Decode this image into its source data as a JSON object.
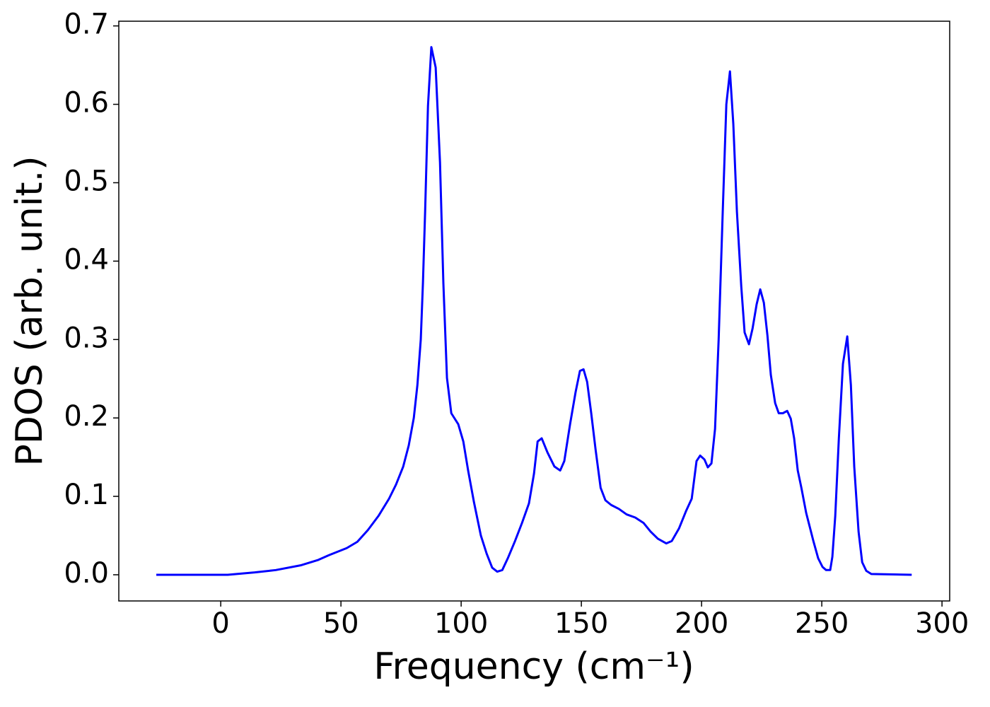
{
  "chart_data": {
    "type": "line",
    "x_label": "Frequency (cm⁻¹)",
    "y_label": "PDOS (arb. unit.)",
    "color": "#0000ff",
    "xlim": [
      -42.4,
      303.2
    ],
    "ylim": [
      -0.0334,
      0.706
    ],
    "xticks": [
      0,
      50,
      100,
      150,
      200,
      250,
      300
    ],
    "yticks": [
      {
        "value": 0,
        "label": "0.0"
      },
      0.1,
      0.2,
      0.3,
      0.4,
      0.5,
      0.6,
      0.7
    ],
    "x": [
      -26.8,
      2.9,
      14.1,
      22.9,
      33.2,
      40.6,
      45.0,
      52.4,
      56.8,
      61.2,
      65.6,
      70.0,
      72.9,
      75.9,
      78.2,
      80.3,
      81.8,
      83.2,
      84.1,
      85.0,
      86.2,
      87.6,
      89.4,
      91.2,
      92.6,
      94.1,
      95.9,
      98.8,
      100.9,
      102.9,
      105.3,
      108.2,
      110.6,
      112.9,
      115.0,
      117.1,
      119.4,
      122.4,
      125.3,
      128.2,
      130.3,
      131.8,
      133.5,
      135.9,
      138.8,
      141.2,
      142.9,
      145.3,
      147.6,
      149.4,
      150.9,
      152.4,
      154.1,
      155.9,
      158.0,
      160.0,
      162.4,
      165.6,
      168.8,
      172.4,
      175.9,
      178.8,
      181.8,
      185.3,
      187.6,
      190.6,
      193.5,
      195.9,
      197.9,
      199.4,
      201.2,
      202.6,
      204.1,
      205.6,
      207.1,
      208.8,
      210.3,
      211.8,
      213.2,
      214.7,
      216.5,
      217.9,
      219.7,
      221.2,
      222.9,
      224.4,
      225.9,
      227.4,
      228.8,
      230.6,
      232.1,
      233.8,
      235.6,
      237.1,
      238.5,
      240.0,
      241.5,
      243.5,
      246.5,
      248.5,
      250.3,
      251.8,
      253.5,
      254.4,
      255.6,
      257.1,
      258.8,
      260.6,
      262.1,
      263.5,
      265.3,
      266.8,
      268.5,
      270.6,
      287.4
    ],
    "values": [
      0,
      0,
      0.003,
      0.006,
      0.012,
      0.019,
      0.025,
      0.034,
      0.042,
      0.057,
      0.075,
      0.097,
      0.115,
      0.138,
      0.165,
      0.2,
      0.242,
      0.3,
      0.372,
      0.462,
      0.598,
      0.673,
      0.647,
      0.526,
      0.372,
      0.251,
      0.206,
      0.192,
      0.17,
      0.133,
      0.093,
      0.05,
      0.027,
      0.009,
      0.004,
      0.006,
      0.021,
      0.043,
      0.066,
      0.091,
      0.129,
      0.17,
      0.174,
      0.156,
      0.138,
      0.133,
      0.145,
      0.192,
      0.233,
      0.26,
      0.262,
      0.246,
      0.206,
      0.16,
      0.111,
      0.095,
      0.089,
      0.084,
      0.077,
      0.073,
      0.066,
      0.055,
      0.046,
      0.04,
      0.043,
      0.059,
      0.081,
      0.097,
      0.145,
      0.152,
      0.147,
      0.137,
      0.142,
      0.186,
      0.3,
      0.463,
      0.6,
      0.642,
      0.575,
      0.463,
      0.368,
      0.309,
      0.294,
      0.314,
      0.345,
      0.364,
      0.347,
      0.305,
      0.255,
      0.219,
      0.206,
      0.206,
      0.209,
      0.199,
      0.174,
      0.133,
      0.111,
      0.079,
      0.043,
      0.021,
      0.01,
      0.006,
      0.006,
      0.023,
      0.075,
      0.174,
      0.269,
      0.304,
      0.242,
      0.138,
      0.055,
      0.016,
      0.005,
      0.001,
      0
    ]
  }
}
